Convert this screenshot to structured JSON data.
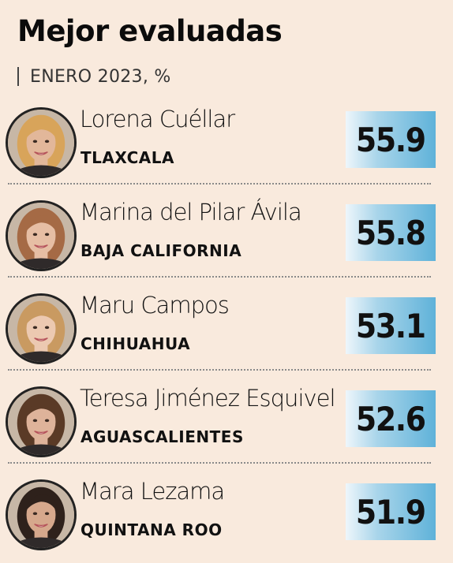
{
  "title": "Mejor evaluadas",
  "subtitle": "ENERO 2023, %",
  "chart_data": {
    "type": "table",
    "title": "Mejor evaluadas",
    "subtitle": "ENERO 2023, %",
    "columns": [
      "name",
      "state",
      "value"
    ],
    "rows": [
      {
        "name": "Lorena Cuéllar",
        "state": "TLAXCALA",
        "value": "55.9",
        "skin": "#e2b79a",
        "hair": "#d8a45a"
      },
      {
        "name": "Marina del Pilar Ávila",
        "state": "BAJA CALIFORNIA",
        "value": "55.8",
        "skin": "#e6bea4",
        "hair": "#a56a45"
      },
      {
        "name": "Maru Campos",
        "state": "CHIHUAHUA",
        "value": "53.1",
        "skin": "#ecc9b1",
        "hair": "#c99a61"
      },
      {
        "name": "Teresa Jiménez Esquivel",
        "state": "AGUASCALIENTES",
        "value": "52.6",
        "skin": "#deb39a",
        "hair": "#5a3a26"
      },
      {
        "name": "Mara Lezama",
        "state": "QUINTANA ROO",
        "value": "51.9",
        "skin": "#d6a88c",
        "hair": "#2e211b"
      }
    ]
  },
  "colors": {
    "background": "#f9eadd",
    "value_box_light": "#eef6fb",
    "value_box_dark": "#5fb2d9",
    "text": "#111111"
  },
  "icons": {
    "portrait": "person-portrait-icon"
  }
}
